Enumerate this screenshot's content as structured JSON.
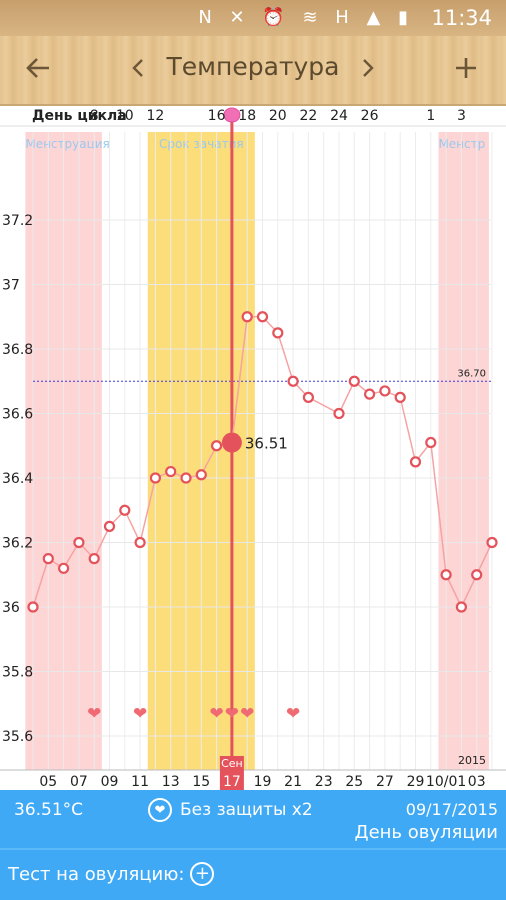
{
  "status_bar": {
    "time": "11:34",
    "icons": [
      "nfc-icon",
      "mute-icon",
      "alarm-icon",
      "wifi-icon",
      "h-network-icon",
      "signal-icon",
      "battery-charging-icon"
    ]
  },
  "toolbar": {
    "title": "Температура",
    "back_icon": "arrow-left-icon",
    "prev_icon": "chevron-left-icon",
    "next_icon": "chevron-right-icon",
    "add_icon": "plus-icon"
  },
  "chart_data": {
    "type": "line",
    "header_label": "День цикла",
    "cycle_day_labels": [
      "8",
      "10",
      "12",
      "16",
      "18",
      "20",
      "22",
      "24",
      "26",
      "1",
      "3"
    ],
    "x_date_labels": [
      "05",
      "07",
      "09",
      "11",
      "13",
      "15",
      "17",
      "19",
      "21",
      "23",
      "25",
      "27",
      "29",
      "10/01",
      "03"
    ],
    "month_label": "Сен",
    "year_label": "2015",
    "ylim": [
      35.5,
      37.4
    ],
    "y_ticks": [
      "35.6",
      "35.8",
      "36",
      "36.2",
      "36.4",
      "36.6",
      "36.8",
      "37",
      "37.2"
    ],
    "day_range": [
      4,
      34
    ],
    "series": [
      {
        "values": [
          [
            4,
            36.0
          ],
          [
            5,
            36.15
          ],
          [
            6,
            36.12
          ],
          [
            7,
            36.2
          ],
          [
            8,
            36.15
          ],
          [
            9,
            36.25
          ],
          [
            10,
            36.3
          ],
          [
            11,
            36.2
          ],
          [
            12,
            36.4
          ],
          [
            13,
            36.42
          ],
          [
            14,
            36.4
          ],
          [
            15,
            36.41
          ],
          [
            16,
            36.5
          ],
          [
            17,
            36.51
          ],
          [
            18,
            36.9
          ],
          [
            19,
            36.9
          ],
          [
            20,
            36.85
          ],
          [
            21,
            36.7
          ],
          [
            22,
            36.65
          ],
          [
            24,
            36.6
          ],
          [
            25,
            36.7
          ],
          [
            26,
            36.66
          ],
          [
            27,
            36.67
          ],
          [
            28,
            36.65
          ],
          [
            29,
            36.45
          ],
          [
            30,
            36.51
          ],
          [
            31,
            36.1
          ],
          [
            32,
            36.0
          ],
          [
            33,
            36.1
          ],
          [
            34,
            36.2
          ]
        ]
      }
    ],
    "selected_point": {
      "day": 17,
      "value": 36.51,
      "label": "36.51"
    },
    "coverline": {
      "value": 36.7,
      "label": "36.70"
    },
    "bands": [
      {
        "label": "Менструация",
        "from": 4,
        "to": 9,
        "color": "#fdd5d5"
      },
      {
        "label": "Срок зачатия",
        "from": 12,
        "to": 19,
        "color": "#fbdd7a"
      },
      {
        "label": "Менстр",
        "from": 31,
        "to": 34.3,
        "color": "#fdd5d5"
      }
    ],
    "hearts": [
      8,
      11,
      16,
      17,
      18,
      21
    ],
    "ovulation_day": 17,
    "colors": {
      "line": "#f5a3a3",
      "point": "#e4525b",
      "ovulation": "#e4525b",
      "coverline": "#3a3ae0"
    }
  },
  "footer": {
    "temperature": "36.51°C",
    "sex_label": "Без защиты x2",
    "date": "09/17/2015",
    "status": "День овуляции",
    "test_label": "Тест на овуляцию:"
  }
}
